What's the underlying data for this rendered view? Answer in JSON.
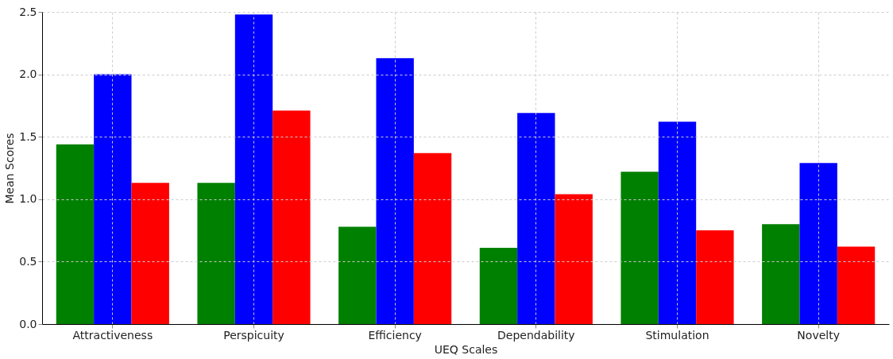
{
  "chart_data": {
    "type": "bar",
    "xlabel": "UEQ Scales",
    "ylabel": "Mean Scores",
    "categories": [
      "Attractiveness",
      "Perspicuity",
      "Efficiency",
      "Dependability",
      "Stimulation",
      "Novelty"
    ],
    "series": [
      {
        "color": "#008000",
        "values": [
          1.44,
          1.13,
          0.78,
          0.61,
          1.22,
          0.8
        ]
      },
      {
        "color": "#0000ff",
        "values": [
          2.0,
          2.48,
          2.13,
          1.69,
          1.62,
          1.29
        ]
      },
      {
        "color": "#ff0000",
        "values": [
          1.13,
          1.71,
          1.37,
          1.04,
          0.75,
          0.62
        ]
      }
    ],
    "ylim": [
      0,
      2.5
    ],
    "yticks": [
      {
        "value": 0,
        "label": "0.0"
      },
      0.5,
      {
        "value": 1,
        "label": "1.0"
      },
      1.5,
      {
        "value": 2,
        "label": "2.0"
      },
      2.5
    ],
    "grid": true,
    "legend": false
  }
}
